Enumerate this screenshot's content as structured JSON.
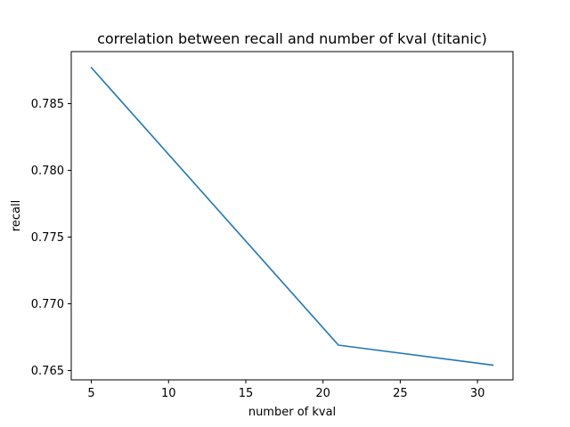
{
  "chart_data": {
    "type": "line",
    "title": "correlation between recall and number of kval (titanic)",
    "xlabel": "number of kval",
    "ylabel": "recall",
    "xlim": [
      3.7,
      32.3
    ],
    "ylim": [
      0.7643,
      0.7889
    ],
    "x_ticks": [
      5,
      10,
      15,
      20,
      25,
      30
    ],
    "x_tick_labels": [
      "5",
      "10",
      "15",
      "20",
      "25",
      "30"
    ],
    "y_ticks": [
      0.765,
      0.77,
      0.775,
      0.78,
      0.785
    ],
    "y_tick_labels": [
      "0.765",
      "0.770",
      "0.775",
      "0.780",
      "0.785"
    ],
    "grid": false,
    "series": [
      {
        "color": "#1f77b4",
        "x": [
          5,
          21,
          31
        ],
        "y": [
          0.7877,
          0.7669,
          0.7654
        ]
      }
    ]
  }
}
